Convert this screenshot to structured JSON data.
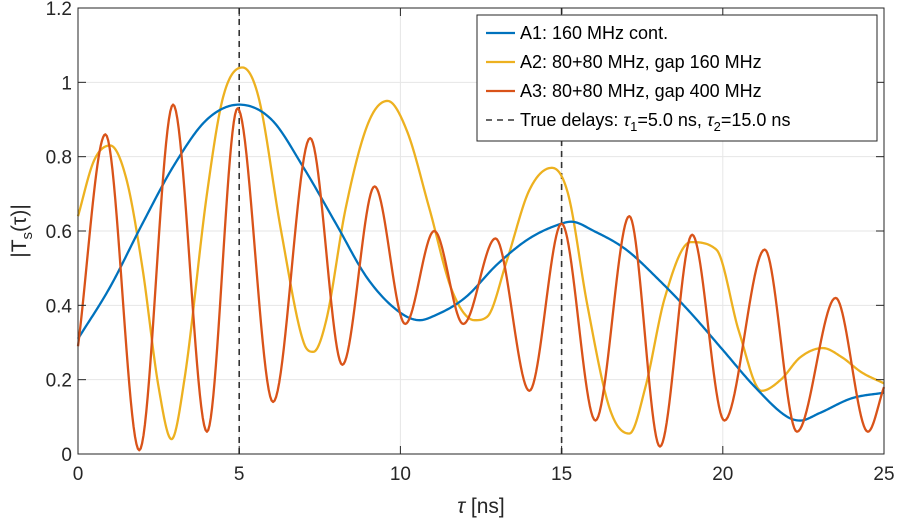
{
  "chart_data": {
    "type": "line",
    "xlabel_symbol": "τ",
    "xlabel_unit": " [ns]",
    "ylabel": {
      "prefix": "|T",
      "sub": "s",
      "arg": "(τ)|"
    },
    "xlim": [
      0,
      25
    ],
    "ylim": [
      0,
      1.2
    ],
    "xticks": [
      0,
      5,
      10,
      15,
      20,
      25
    ],
    "yticks": [
      0,
      0.2,
      0.4,
      0.6,
      0.8,
      1,
      1.2
    ],
    "ytick_labels": [
      "0",
      "0.2",
      "0.4",
      "0.6",
      "0.8",
      "1",
      "1.2"
    ],
    "grid": true,
    "legend_position": "top-right",
    "series": [
      {
        "name": "A1: 160 MHz cont.",
        "color": "#0072BD",
        "x": [
          0,
          1,
          2,
          3,
          4,
          5,
          6,
          7,
          8,
          9,
          10,
          10.6,
          11,
          12,
          13,
          14,
          15,
          15.3,
          16,
          17,
          18,
          19,
          20,
          21,
          22,
          22.4,
          23,
          24,
          25
        ],
        "values": [
          0.31,
          0.45,
          0.62,
          0.78,
          0.9,
          0.94,
          0.9,
          0.77,
          0.62,
          0.47,
          0.38,
          0.36,
          0.37,
          0.42,
          0.51,
          0.58,
          0.62,
          0.625,
          0.6,
          0.55,
          0.47,
          0.38,
          0.28,
          0.18,
          0.1,
          0.09,
          0.11,
          0.15,
          0.165
        ]
      },
      {
        "name": "A2: 80+80 MHz, gap 160 MHz",
        "color": "#EDB120",
        "x": [
          0,
          0.5,
          1,
          1.5,
          2,
          2.5,
          2.9,
          3.3,
          4,
          4.5,
          5.1,
          5.6,
          6.3,
          7,
          7.3,
          7.7,
          8.3,
          9,
          9.6,
          10.2,
          10.9,
          11.6,
          12.3,
          12.7,
          13.3,
          14,
          14.7,
          15.2,
          15.8,
          16.5,
          17.1,
          17.6,
          18.2,
          19,
          19.8,
          20.5,
          21.2,
          21.8,
          22.4,
          23.1,
          23.7,
          24.3,
          25
        ],
        "values": [
          0.64,
          0.79,
          0.83,
          0.74,
          0.5,
          0.18,
          0.04,
          0.2,
          0.7,
          0.96,
          1.04,
          0.96,
          0.6,
          0.3,
          0.275,
          0.36,
          0.66,
          0.89,
          0.95,
          0.87,
          0.66,
          0.44,
          0.36,
          0.37,
          0.52,
          0.71,
          0.77,
          0.7,
          0.4,
          0.12,
          0.055,
          0.18,
          0.42,
          0.57,
          0.55,
          0.33,
          0.17,
          0.2,
          0.26,
          0.285,
          0.26,
          0.22,
          0.19
        ]
      },
      {
        "name": "A3: 80+80 MHz, gap 400 MHz",
        "color": "#D95319",
        "x": [
          0,
          0.85,
          1.9,
          2.95,
          4.0,
          4.95,
          6.05,
          7.2,
          8.2,
          9.2,
          10.15,
          11.05,
          11.95,
          12.95,
          14.0,
          15.0,
          16.05,
          17.1,
          18.05,
          19.05,
          20.05,
          21.3,
          22.3,
          23.5,
          24.5,
          25
        ],
        "values": [
          0.29,
          0.86,
          0.01,
          0.94,
          0.06,
          0.93,
          0.14,
          0.85,
          0.24,
          0.72,
          0.35,
          0.6,
          0.35,
          0.58,
          0.17,
          0.62,
          0.09,
          0.64,
          0.02,
          0.59,
          0.09,
          0.55,
          0.06,
          0.42,
          0.06,
          0.18
        ]
      }
    ],
    "reference_lines": {
      "label_prefix": "True delays: ",
      "tau1_value": "=5.0 ns, ",
      "tau2_value": "=15.0 ns",
      "x": [
        5,
        15
      ],
      "color": "#333333"
    }
  }
}
